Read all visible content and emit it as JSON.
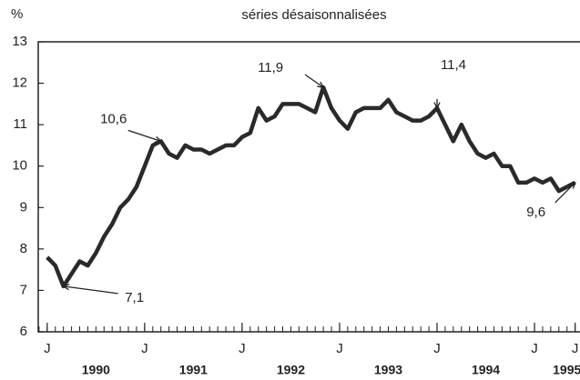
{
  "chart_data": {
    "type": "line",
    "y_unit_label": "%",
    "subtitle": "séries désaisonnalisées",
    "x": [
      0,
      1,
      2,
      3,
      4,
      5,
      6,
      7,
      8,
      9,
      10,
      11,
      12,
      13,
      14,
      15,
      16,
      17,
      18,
      19,
      20,
      21,
      22,
      23,
      24,
      25,
      26,
      27,
      28,
      29,
      30,
      31,
      32,
      33,
      34,
      35,
      36,
      37,
      38,
      39,
      40,
      41,
      42,
      43,
      44,
      45,
      46,
      47,
      48,
      49,
      50,
      51,
      52,
      53,
      54,
      55,
      56,
      57,
      58,
      59,
      60,
      61,
      62,
      63,
      64,
      65
    ],
    "series": [
      {
        "color": "#2a2a2a",
        "values": [
          7.8,
          7.6,
          7.1,
          7.4,
          7.7,
          7.6,
          7.9,
          8.3,
          8.6,
          9.0,
          9.2,
          9.5,
          10.0,
          10.5,
          10.6,
          10.3,
          10.2,
          10.5,
          10.4,
          10.4,
          10.3,
          10.4,
          10.5,
          10.5,
          10.7,
          10.8,
          11.4,
          11.1,
          11.2,
          11.5,
          11.5,
          11.5,
          11.4,
          11.3,
          11.9,
          11.4,
          11.1,
          10.9,
          11.3,
          11.4,
          11.4,
          11.4,
          11.6,
          11.3,
          11.2,
          11.1,
          11.1,
          11.2,
          11.4,
          11.0,
          10.6,
          11.0,
          10.6,
          10.3,
          10.2,
          10.3,
          10.0,
          10.0,
          9.6,
          9.6,
          9.7,
          9.6,
          9.7,
          9.4,
          9.5,
          9.6
        ]
      }
    ],
    "xlim": [
      -1.1,
      65.6
    ],
    "xticks": [
      {
        "value": 0,
        "label": "J"
      },
      {
        "value": 12,
        "label": "J"
      },
      {
        "value": 24,
        "label": "J"
      },
      {
        "value": 36,
        "label": "J"
      },
      {
        "value": 48,
        "label": "J"
      },
      {
        "value": 60,
        "label": "J"
      },
      {
        "value": 65,
        "label": "J"
      }
    ],
    "year_ticks": [
      {
        "value": 6,
        "label": "1990"
      },
      {
        "value": 18,
        "label": "1991"
      },
      {
        "value": 30,
        "label": "1992"
      },
      {
        "value": 42,
        "label": "1993"
      },
      {
        "value": 54,
        "label": "1994"
      },
      {
        "value": 64,
        "label": "1995"
      }
    ],
    "ylim": [
      6,
      13
    ],
    "yticks": [
      6,
      7,
      8,
      9,
      10,
      11,
      12,
      13
    ],
    "annotations": [
      {
        "text": "10,6",
        "x": 14,
        "y": 10.6
      },
      {
        "text": "11,9",
        "x": 34,
        "y": 11.9
      },
      {
        "text": "11,4",
        "x": 48,
        "y": 11.4
      },
      {
        "text": "7,1",
        "x": 2,
        "y": 7.1
      },
      {
        "text": "9,6",
        "x": 65,
        "y": 9.6
      }
    ]
  }
}
